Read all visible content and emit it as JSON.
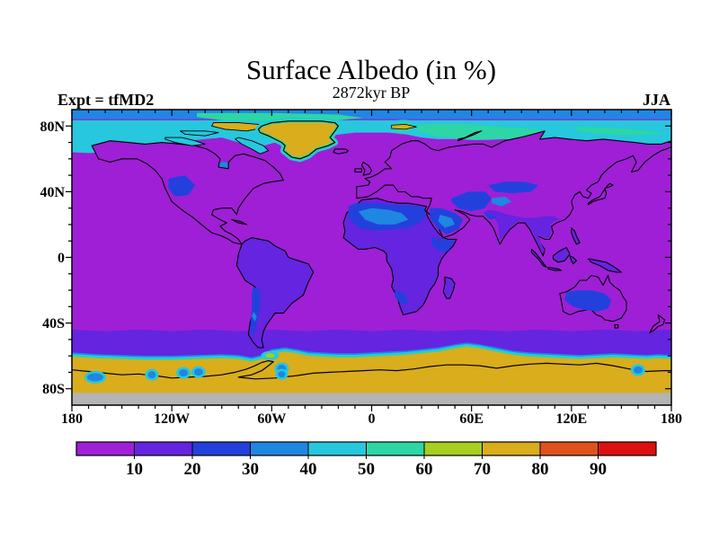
{
  "figure": {
    "title": "Surface Albedo (in %)",
    "subtitle": "2872kyr BP",
    "experiment_label": "Expt = tfMD2",
    "season_label": "JJA",
    "background_color": "#ffffff"
  },
  "chart_data": {
    "type": "heatmap",
    "title": "Surface Albedo (in %)",
    "subtitle": "2872kyr BP",
    "experiment": "tfMD2",
    "season": "JJA",
    "units": "%",
    "projection": "equirectangular world map, 90N to 90S, 180W to 180E",
    "x_axis": {
      "tick_labels": [
        "180",
        "120W",
        "60W",
        "0",
        "60E",
        "120E",
        "180"
      ],
      "tick_lons": [
        -180,
        -120,
        -60,
        0,
        60,
        120,
        180
      ],
      "minor_tick_interval_deg": 10
    },
    "y_axis": {
      "tick_labels": [
        "80N",
        "40N",
        "0",
        "40S",
        "80S"
      ],
      "tick_lats": [
        80,
        40,
        0,
        -40,
        -80
      ],
      "minor_tick_interval_deg": 10
    },
    "colorbar": {
      "bin_edges": [
        0,
        10,
        20,
        30,
        40,
        50,
        60,
        70,
        80,
        90,
        100
      ],
      "tick_labels": [
        "10",
        "20",
        "30",
        "40",
        "50",
        "60",
        "70",
        "80",
        "90"
      ],
      "colors": [
        "#9e1fd6",
        "#6424e0",
        "#2340dd",
        "#1f86e2",
        "#27c7de",
        "#2dd6a4",
        "#a6cf1f",
        "#d9ad1b",
        "#e0521b",
        "#dd1010"
      ],
      "no_data_color": "#b4b4b4",
      "outline_color": "#000000",
      "position": "horizontal, below map"
    },
    "grid": false,
    "regions": [
      {
        "area": "open ocean (low and mid latitudes)",
        "albedo_percent_bin": "0-10"
      },
      {
        "area": "vegetated land: South America, tropical Africa, India, Southeast Asia",
        "albedo_percent_bin": "10-20"
      },
      {
        "area": "deserts: Sahara, Arabia, Horn of Africa, central Asia, Australian interior, Andes, western North America",
        "albedo_percent_bin": "20-40"
      },
      {
        "area": "Southern Ocean poleward of about 45S",
        "albedo_percent_bin": "10-20"
      },
      {
        "area": "Arctic Ocean sea-ice: blue-cyan-turquoise bands",
        "albedo_percent_bin": "30-60"
      },
      {
        "area": "Greenland ice sheet, Svalbard, Ellesmere Island",
        "albedo_percent_bin": "70-80"
      },
      {
        "area": "Antarctic sea ice and Antarctica (austral winter)",
        "albedo_percent_bin": "70-80"
      },
      {
        "area": "narrow cyan/green fringe at Antarctic sea-ice edge with scattered blue polynya spots",
        "albedo_percent_bin": "30-60"
      },
      {
        "area": "south polar strip below about 83S",
        "albedo_percent_bin": "no data (gray)"
      }
    ]
  }
}
